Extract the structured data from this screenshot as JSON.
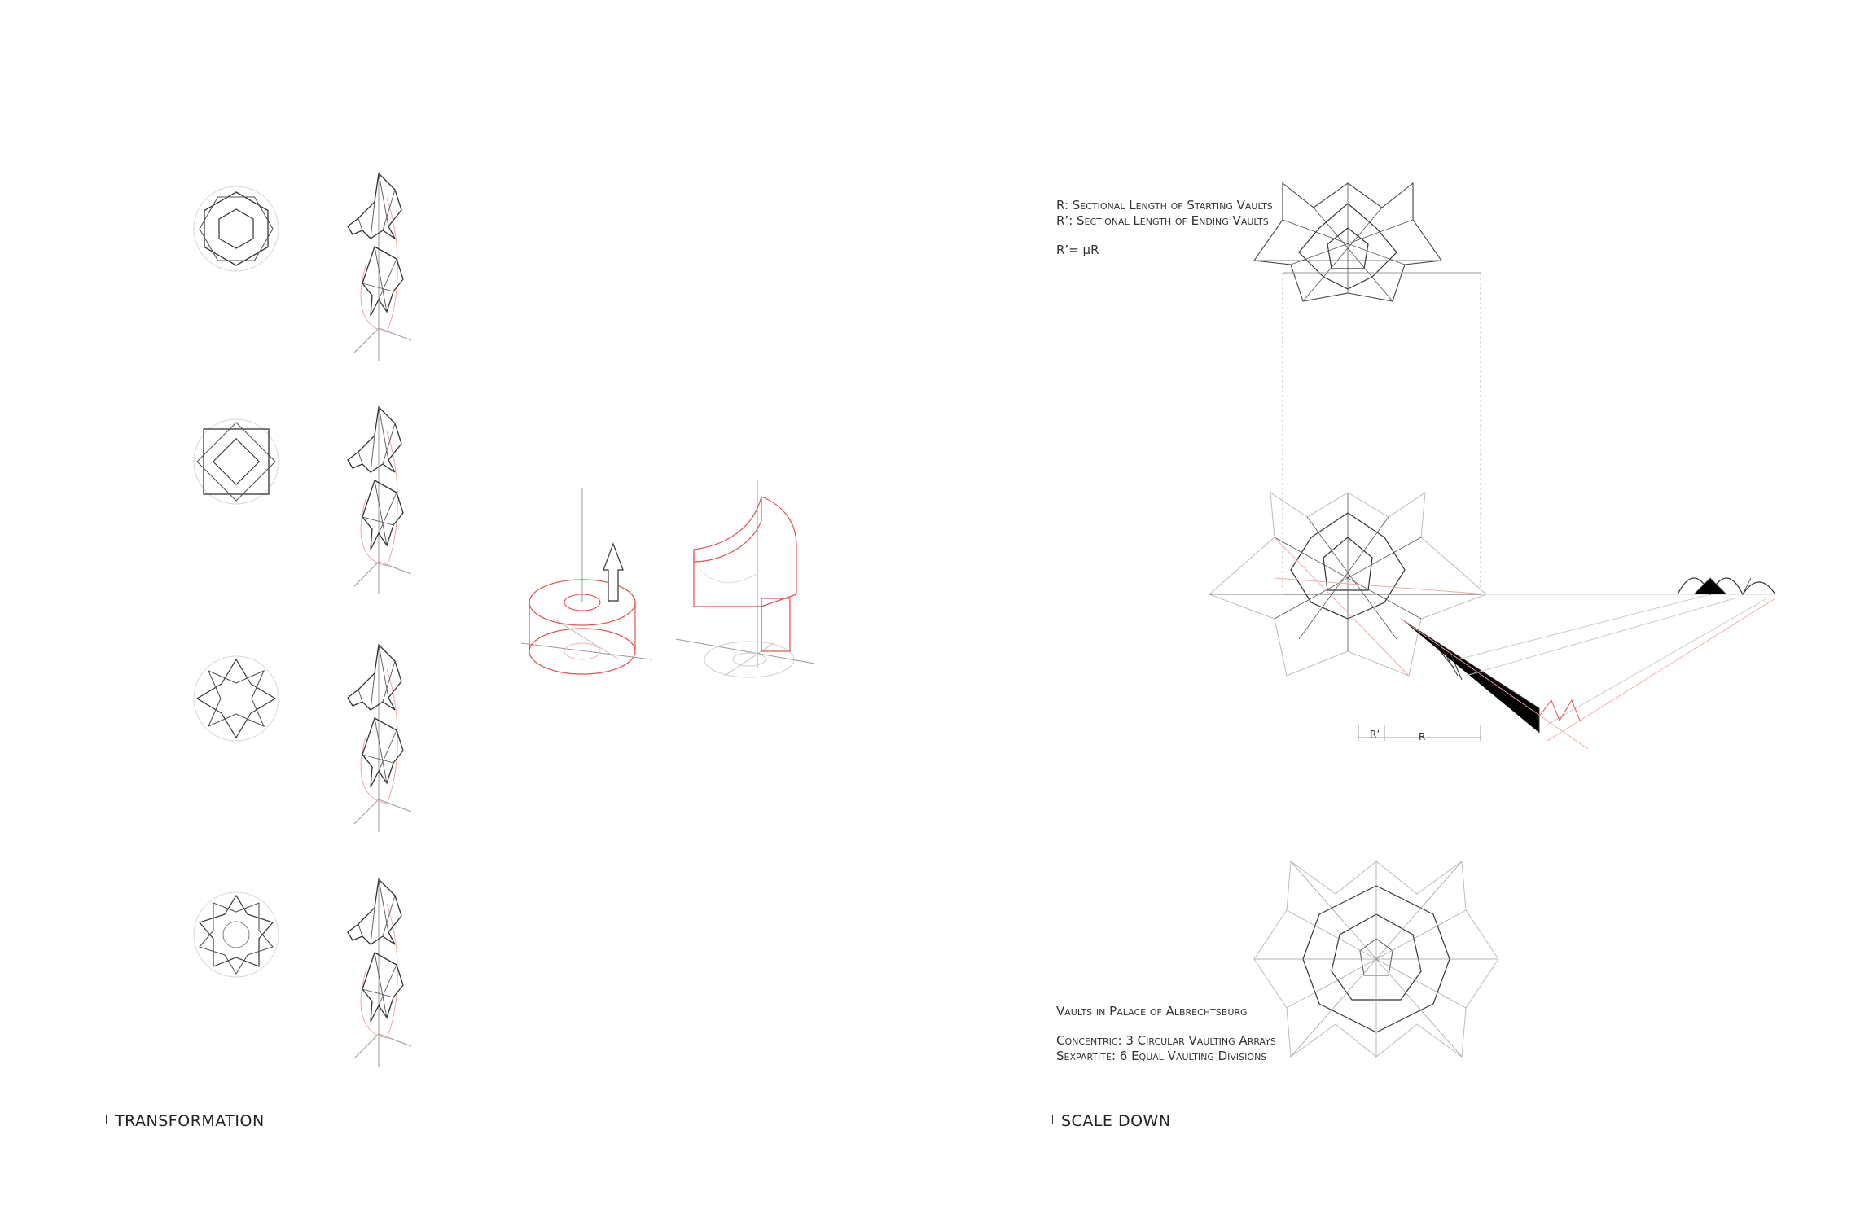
{
  "sections": {
    "left_title": "TRANSFORMATION",
    "right_title": "SCALE DOWN"
  },
  "notes": {
    "r_definition": "R: Sectional Length of Starting Vaults",
    "r_prime_definition": "R’: Sectional Length of Ending Vaults",
    "formula": "R’= μR",
    "vaults_caption": "Vaults in Palace of Albrechtsburg",
    "concentric": "Concentric: 3 Circular Vaulting Arrays",
    "sexpartite": "Sexpartite: 6 Equal Vaulting Divisions"
  },
  "dimension_labels": {
    "r_prime": "R’",
    "r": "R"
  },
  "colors": {
    "ink": "#333333",
    "faint": "#b8b8b8",
    "accent_red": "#e0524f"
  }
}
